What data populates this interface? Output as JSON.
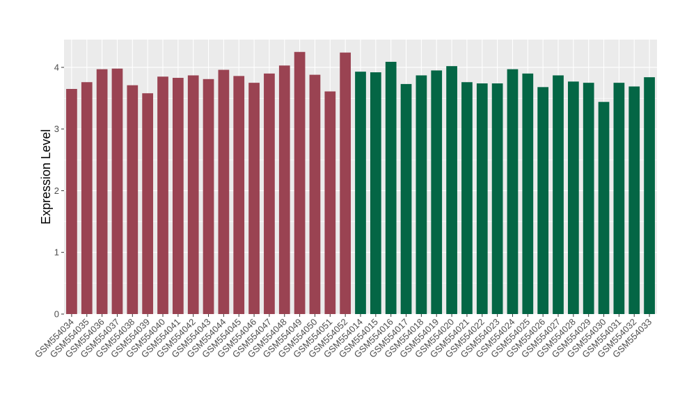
{
  "chart_data": {
    "type": "bar",
    "ylabel": "Expression Level",
    "xlabel": "",
    "ylim": [
      0,
      4.45
    ],
    "yticks": [
      0,
      1,
      2,
      3,
      4
    ],
    "grid": true,
    "legend": "none",
    "categories": [
      "GSM554034",
      "GSM554035",
      "GSM554036",
      "GSM554037",
      "GSM554038",
      "GSM554039",
      "GSM554040",
      "GSM554041",
      "GSM554042",
      "GSM554043",
      "GSM554044",
      "GSM554045",
      "GSM554046",
      "GSM554047",
      "GSM554048",
      "GSM554049",
      "GSM554050",
      "GSM554051",
      "GSM554052",
      "GSM554014",
      "GSM554015",
      "GSM554016",
      "GSM554017",
      "GSM554018",
      "GSM554019",
      "GSM554020",
      "GSM554021",
      "GSM554022",
      "GSM554023",
      "GSM554024",
      "GSM554025",
      "GSM554026",
      "GSM554027",
      "GSM554028",
      "GSM554029",
      "GSM554030",
      "GSM554031",
      "GSM554032",
      "GSM554033"
    ],
    "values": [
      3.65,
      3.76,
      3.97,
      3.98,
      3.71,
      3.58,
      3.85,
      3.83,
      3.87,
      3.81,
      3.96,
      3.86,
      3.75,
      3.9,
      4.03,
      4.25,
      3.88,
      3.61,
      4.24,
      3.93,
      3.92,
      4.09,
      3.73,
      3.87,
      3.95,
      4.02,
      3.76,
      3.74,
      3.74,
      3.97,
      3.9,
      3.68,
      3.87,
      3.77,
      3.75,
      3.44,
      3.75,
      3.69,
      3.84
    ],
    "bar_colors": [
      "#9a4352",
      "#9a4352",
      "#9a4352",
      "#9a4352",
      "#9a4352",
      "#9a4352",
      "#9a4352",
      "#9a4352",
      "#9a4352",
      "#9a4352",
      "#9a4352",
      "#9a4352",
      "#9a4352",
      "#9a4352",
      "#9a4352",
      "#9a4352",
      "#9a4352",
      "#9a4352",
      "#9a4352",
      "#046645",
      "#046645",
      "#046645",
      "#046645",
      "#046645",
      "#046645",
      "#046645",
      "#046645",
      "#046645",
      "#046645",
      "#046645",
      "#046645",
      "#046645",
      "#046645",
      "#046645",
      "#046645",
      "#046645",
      "#046645",
      "#046645",
      "#046645"
    ],
    "panel_background": "#ebebeb",
    "grid_color": "#ffffff"
  }
}
